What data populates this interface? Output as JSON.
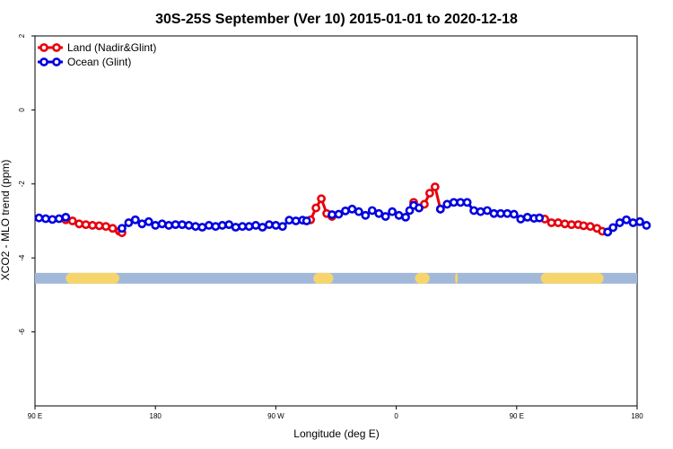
{
  "chart_data": {
    "type": "line",
    "title": "30S-25S September (Ver 10)   2015-01-01 to 2020-12-18",
    "xlabel": "Longitude (deg E)",
    "ylabel": "XCO2 - MLO trend (ppm)",
    "xlim": [
      90,
      450
    ],
    "ylim": [
      -8,
      2
    ],
    "x_ticks": [
      {
        "value": 90,
        "label": "90 E"
      },
      {
        "value": 180,
        "label": "180"
      },
      {
        "value": 270,
        "label": "90 W"
      },
      {
        "value": 360,
        "label": "0"
      },
      {
        "value": 450,
        "label": "90 E"
      },
      {
        "value": 540,
        "label": "180"
      }
    ],
    "y_ticks": [
      {
        "value": 2,
        "label": "2"
      },
      {
        "value": 0,
        "label": "0"
      },
      {
        "value": -2,
        "label": "-2"
      },
      {
        "value": -4,
        "label": "-4"
      },
      {
        "value": -6,
        "label": "-6"
      }
    ],
    "legend_position": "top-left",
    "series": [
      {
        "name": "Land (Nadir&Glint)",
        "color": "#e8000b",
        "segments": [
          {
            "x": [
              113,
              118,
              123,
              128,
              133,
              138,
              143,
              148,
              153,
              155
            ],
            "y": [
              -2.97,
              -3.0,
              -3.08,
              -3.1,
              -3.12,
              -3.13,
              -3.15,
              -3.2,
              -3.28,
              -3.32
            ]
          },
          {
            "x": [
              296,
              300,
              304,
              308,
              312
            ],
            "y": [
              -2.97,
              -2.65,
              -2.4,
              -2.8,
              -2.88
            ]
          },
          {
            "x": [
              373,
              377,
              381,
              385,
              389,
              393
            ],
            "y": [
              -2.5,
              -2.65,
              -2.55,
              -2.25,
              -2.08,
              -2.68
            ]
          },
          {
            "x": [
              467,
              471,
              476,
              481,
              486,
              491,
              496,
              500,
              505,
              510,
              514,
              518
            ],
            "y": [
              -2.92,
              -2.95,
              -3.05,
              -3.05,
              -3.08,
              -3.1,
              -3.1,
              -3.13,
              -3.15,
              -3.2,
              -3.28,
              -3.3
            ]
          }
        ]
      },
      {
        "name": "Ocean (Glint)",
        "color": "#0000e0",
        "segments": [
          {
            "x": [
              93,
              98,
              103,
              108,
              113
            ],
            "y": [
              -2.92,
              -2.94,
              -2.96,
              -2.94,
              -2.9
            ]
          },
          {
            "x": [
              155,
              160,
              165,
              170,
              175,
              180,
              185,
              190,
              195,
              200,
              205,
              210,
              215,
              220,
              225,
              230,
              235,
              240,
              245,
              250,
              255,
              260,
              265,
              270,
              275,
              280,
              285,
              290,
              293
            ],
            "y": [
              -3.2,
              -3.05,
              -2.97,
              -3.08,
              -3.02,
              -3.12,
              -3.08,
              -3.12,
              -3.1,
              -3.1,
              -3.12,
              -3.15,
              -3.17,
              -3.12,
              -3.15,
              -3.12,
              -3.1,
              -3.17,
              -3.15,
              -3.15,
              -3.12,
              -3.17,
              -3.1,
              -3.12,
              -3.15,
              -2.98,
              -3.0,
              -2.98,
              -3.0
            ]
          },
          {
            "x": [
              312,
              317,
              322,
              327,
              332,
              337,
              342,
              347,
              352,
              357,
              362,
              367,
              370,
              373,
              377
            ],
            "y": [
              -2.83,
              -2.82,
              -2.73,
              -2.68,
              -2.75,
              -2.85,
              -2.72,
              -2.8,
              -2.88,
              -2.75,
              -2.85,
              -2.9,
              -2.72,
              -2.58,
              -2.65
            ]
          },
          {
            "x": [
              393,
              398,
              403,
              408,
              413,
              418,
              423,
              428,
              433,
              438,
              443,
              448,
              453,
              458,
              463,
              467
            ],
            "y": [
              -2.68,
              -2.55,
              -2.5,
              -2.5,
              -2.5,
              -2.72,
              -2.75,
              -2.72,
              -2.8,
              -2.8,
              -2.8,
              -2.82,
              -2.95,
              -2.9,
              -2.93,
              -2.92
            ]
          },
          {
            "x": [
              518,
              522,
              527,
              532,
              537,
              542,
              547
            ],
            "y": [
              -3.3,
              -3.18,
              -3.05,
              -2.97,
              -3.05,
              -3.02,
              -3.12
            ]
          }
        ]
      }
    ],
    "surface_strip": {
      "y": -4.55,
      "ocean_color": "#a2b8d8",
      "land_color": "#f6d56c",
      "land_ranges": [
        [
          113,
          153
        ],
        [
          298,
          313
        ],
        [
          374,
          385
        ],
        [
          404,
          406
        ],
        [
          468,
          515
        ]
      ]
    }
  }
}
